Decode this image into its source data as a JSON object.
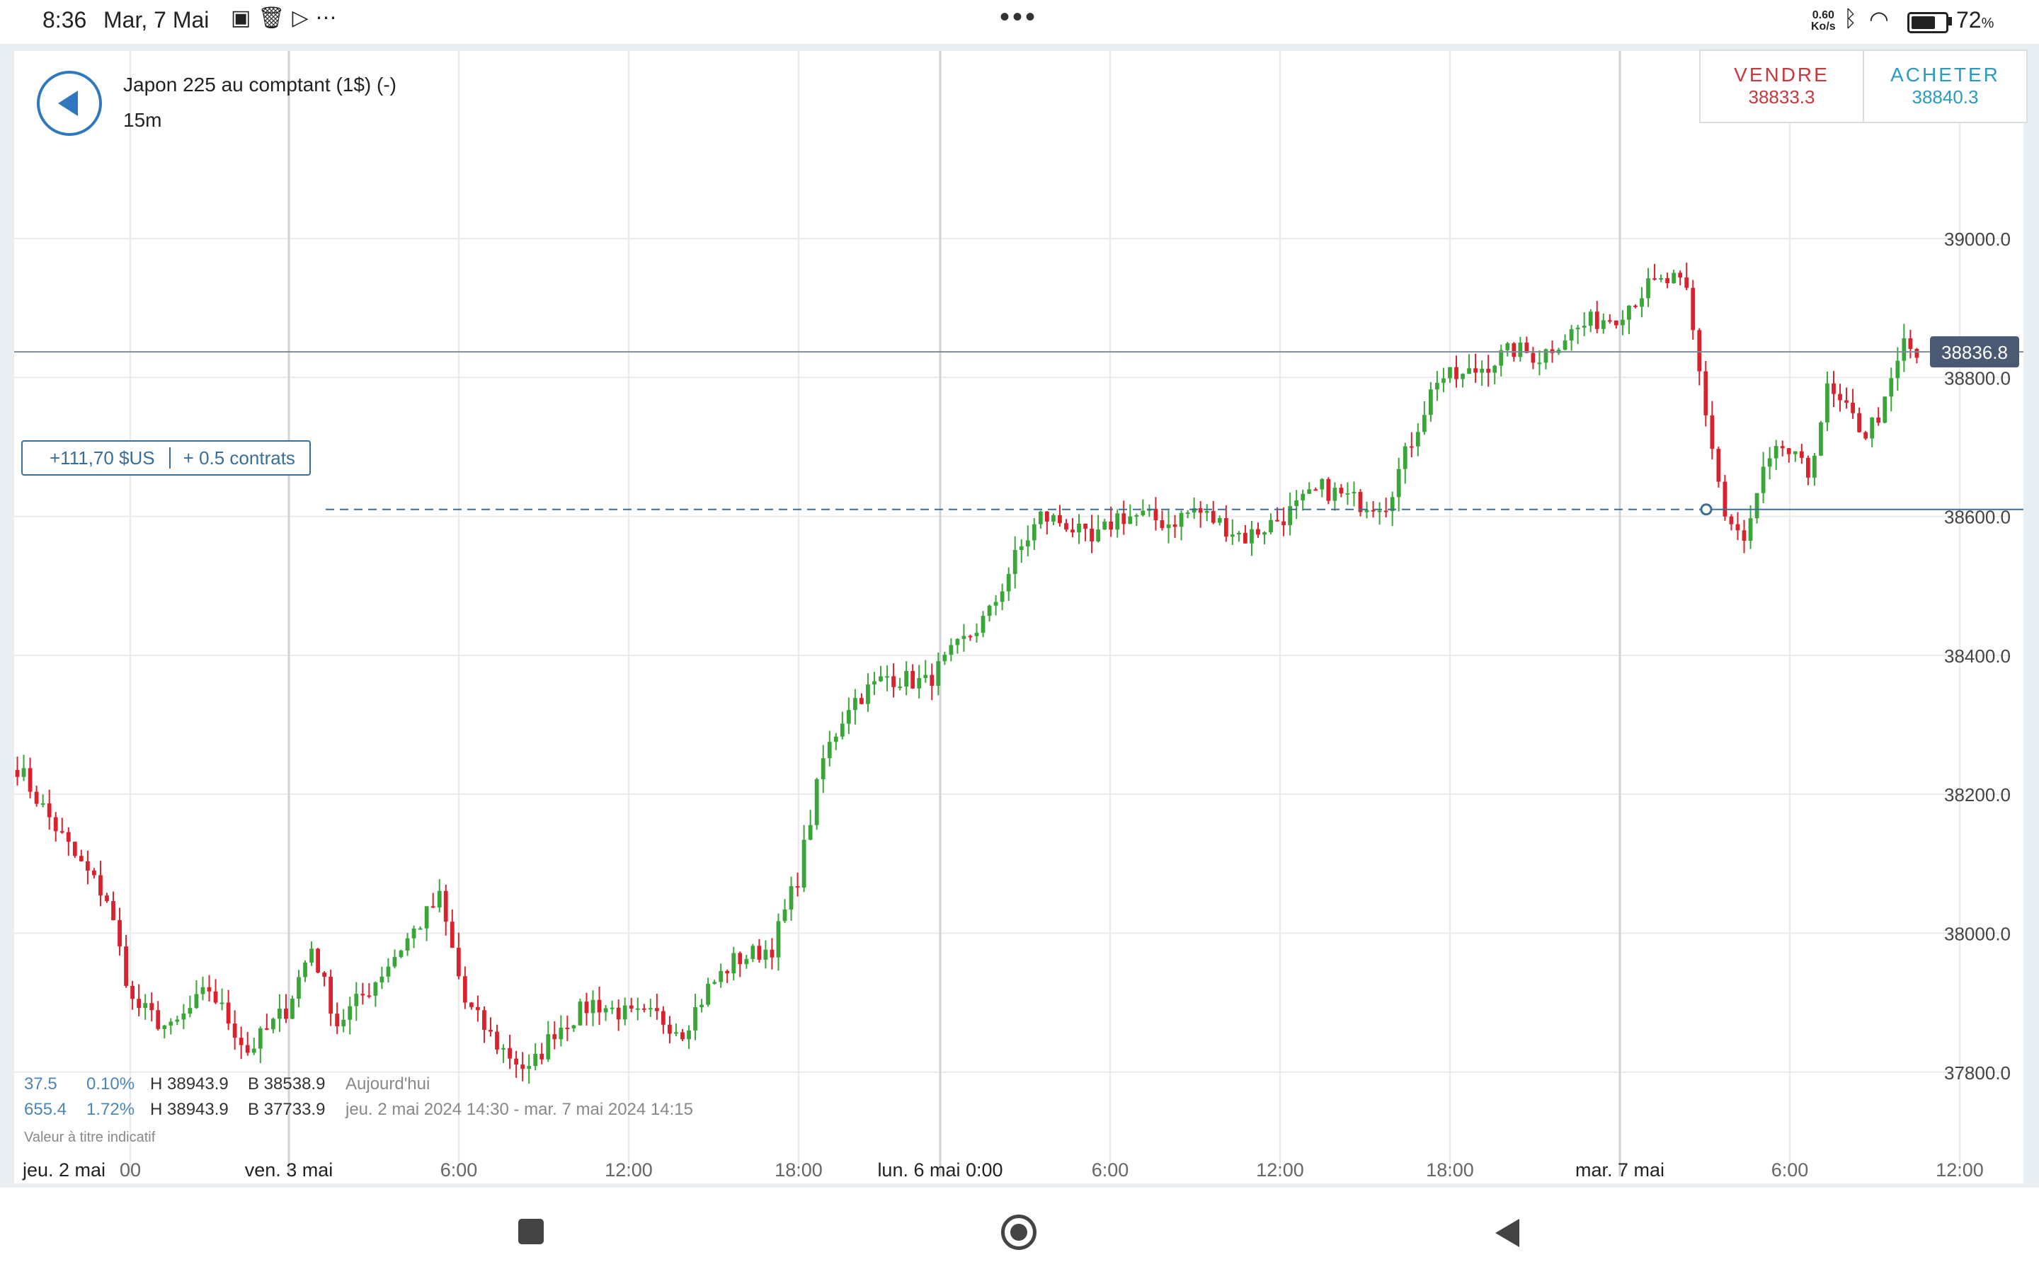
{
  "status_bar": {
    "time": "8:36",
    "date": "Mar, 7 Mai",
    "net_speed_value": "0.60",
    "net_speed_unit": "Ko/s",
    "battery_pct": "72",
    "battery_unit": "%",
    "battery_level": 0.72,
    "notification_icons": [
      "video-icon",
      "trash-icon",
      "play-store-icon",
      "more-dots-icon"
    ]
  },
  "header": {
    "instrument": "Japon 225 au comptant (1$) (-)",
    "timeframe": "15m"
  },
  "trade": {
    "sell_label": "VENDRE",
    "sell_price": "38833.3",
    "buy_label": "ACHETER",
    "buy_price": "38840.3"
  },
  "position": {
    "pl": "+111,70 $US",
    "contracts": "+ 0.5 contrats",
    "entry_level": 38610
  },
  "stats": {
    "row1": {
      "change": "37.5",
      "pct": "0.10%",
      "high": "H 38943.9",
      "low": "B 38538.9",
      "period": "Aujourd'hui"
    },
    "row2": {
      "change": "655.4",
      "pct": "1.72%",
      "high": "H 38943.9",
      "low": "B 37733.9",
      "period": "jeu. 2 mai 2024 14:30 - mar. 7 mai 2024 14:15"
    },
    "disclaimer": "Valeur à titre indicatif"
  },
  "colors": {
    "up": "#3aa63a",
    "down": "#d8222e",
    "current_price_line": "#7d8b98",
    "current_price_badge": "#4a5a72",
    "position_line": "#3a6e96",
    "grid": "#ebebeb"
  },
  "chart_data": {
    "type": "candlestick",
    "timeframe": "15m",
    "y_range": [
      37650,
      39270
    ],
    "y_ticks": [
      37800,
      38000,
      38200,
      38400,
      38600,
      38800,
      39000
    ],
    "y_tick_labels": [
      "37800.0",
      "38000.0",
      "38200.0",
      "38400.0",
      "38600.0",
      "38800.0",
      "39000.0"
    ],
    "x_labels": [
      "jeu. 2 mai",
      "00",
      "ven. 3 mai",
      "6:00",
      "12:00",
      "18:00",
      "lun. 6 mai 0:00",
      "6:00",
      "12:00",
      "18:00",
      "mar. 7 mai",
      "6:00",
      "12:00"
    ],
    "x_major_label_indices": [
      2,
      6,
      10
    ],
    "current_price": 38836.8,
    "current_price_label": "38836.8",
    "grid": true,
    "close_path": [
      [
        0,
        38240
      ],
      [
        4,
        38180
      ],
      [
        9,
        38110
      ],
      [
        14,
        38050
      ],
      [
        18,
        37900
      ],
      [
        24,
        37860
      ],
      [
        30,
        37920
      ],
      [
        36,
        37830
      ],
      [
        42,
        37890
      ],
      [
        46,
        37980
      ],
      [
        50,
        37870
      ],
      [
        55,
        37920
      ],
      [
        60,
        37980
      ],
      [
        66,
        38050
      ],
      [
        70,
        37900
      ],
      [
        75,
        37840
      ],
      [
        80,
        37800
      ],
      [
        84,
        37860
      ],
      [
        90,
        37900
      ],
      [
        96,
        37880
      ],
      [
        100,
        37880
      ],
      [
        104,
        37860
      ],
      [
        108,
        37920
      ],
      [
        112,
        37960
      ],
      [
        118,
        37980
      ],
      [
        122,
        38080
      ],
      [
        126,
        38250
      ],
      [
        130,
        38330
      ],
      [
        136,
        38370
      ],
      [
        142,
        38360
      ],
      [
        146,
        38400
      ],
      [
        152,
        38460
      ],
      [
        156,
        38540
      ],
      [
        160,
        38600
      ],
      [
        164,
        38590
      ],
      [
        168,
        38560
      ],
      [
        172,
        38600
      ],
      [
        176,
        38600
      ],
      [
        180,
        38590
      ],
      [
        184,
        38610
      ],
      [
        188,
        38590
      ],
      [
        192,
        38570
      ],
      [
        198,
        38600
      ],
      [
        204,
        38640
      ],
      [
        210,
        38620
      ],
      [
        214,
        38620
      ],
      [
        218,
        38710
      ],
      [
        222,
        38800
      ],
      [
        226,
        38800
      ],
      [
        230,
        38820
      ],
      [
        234,
        38840
      ],
      [
        238,
        38830
      ],
      [
        242,
        38860
      ],
      [
        246,
        38880
      ],
      [
        250,
        38890
      ],
      [
        255,
        38930
      ],
      [
        259,
        38940
      ],
      [
        261,
        38920
      ],
      [
        264,
        38750
      ],
      [
        267,
        38600
      ],
      [
        270,
        38560
      ],
      [
        273,
        38660
      ],
      [
        276,
        38700
      ],
      [
        280,
        38660
      ],
      [
        283,
        38780
      ],
      [
        286,
        38750
      ],
      [
        289,
        38720
      ],
      [
        292,
        38760
      ],
      [
        295,
        38850
      ],
      [
        297,
        38830
      ]
    ]
  }
}
